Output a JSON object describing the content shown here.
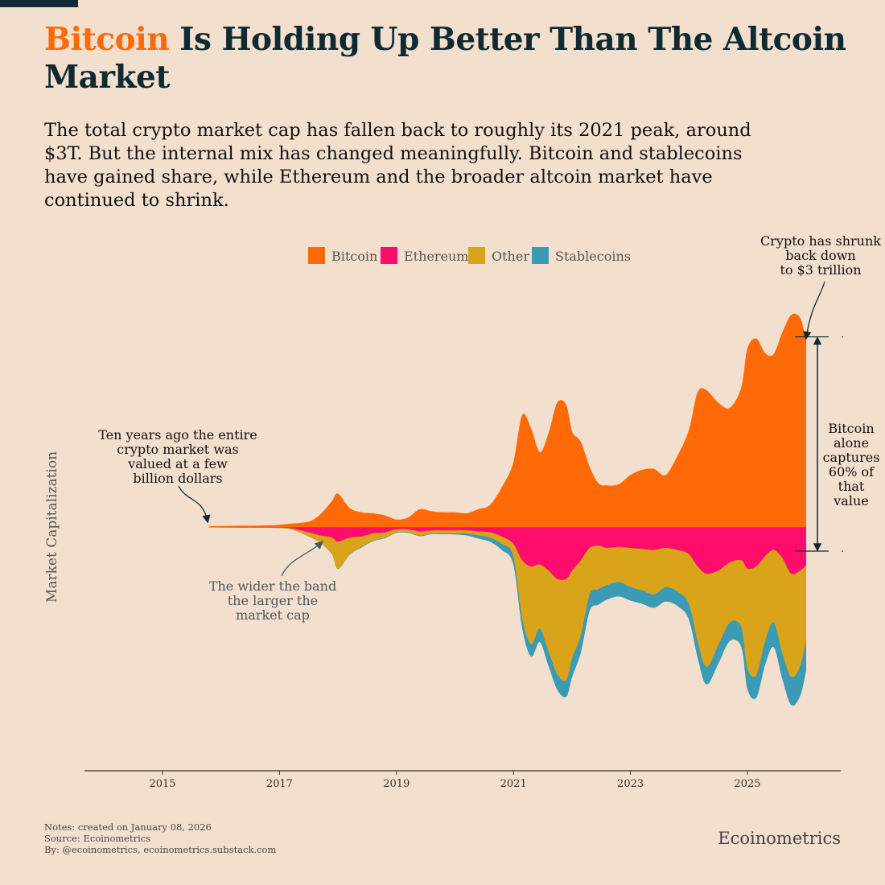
{
  "title": {
    "accent": "Bitcoin",
    "rest": " Is Holding Up Better Than The Altcoin Market"
  },
  "subtitle": "The total crypto market cap has fallen back to roughly its 2021 peak, around $3T. But the internal mix has changed meaningfully. Bitcoin and stablecoins have gained share, while Ethereum and the broader altcoin market have continued to shrink.",
  "notes": {
    "line1": "Notes: created on January 08, 2026",
    "line2": "Source: Ecoinometrics",
    "line3": "By: @ecoinometrics, ecoinometrics.substack.com"
  },
  "brand": "Ecoinometrics",
  "colors": {
    "background": "#f3dfce",
    "bitcoin": "#ff6a08",
    "ethereum": "#fe0d6c",
    "other": "#d9a41a",
    "stablecoins": "#3b9ab4",
    "text": "#0f2a33"
  },
  "chart_data": {
    "type": "area",
    "subtype": "streamgraph",
    "ylabel": "Market Capitalization",
    "xlabel": "",
    "xlim": [
      2013.8,
      2026.7
    ],
    "x_ticks": [
      "2015",
      "2017",
      "2019",
      "2021",
      "2023",
      "2025"
    ],
    "units": "USD trillions (estimated)",
    "legend_position": "top-center",
    "x": [
      2015.8,
      2016.0,
      2016.3,
      2016.6,
      2016.9,
      2017.2,
      2017.5,
      2017.7,
      2017.9,
      2018.0,
      2018.2,
      2018.4,
      2018.6,
      2018.8,
      2019.0,
      2019.2,
      2019.4,
      2019.6,
      2019.8,
      2020.0,
      2020.2,
      2020.4,
      2020.6,
      2020.8,
      2021.0,
      2021.15,
      2021.3,
      2021.45,
      2021.6,
      2021.75,
      2021.9,
      2022.0,
      2022.15,
      2022.3,
      2022.45,
      2022.6,
      2022.8,
      2023.0,
      2023.2,
      2023.4,
      2023.6,
      2023.8,
      2024.0,
      2024.15,
      2024.3,
      2024.5,
      2024.7,
      2024.9,
      2025.0,
      2025.15,
      2025.3,
      2025.45,
      2025.6,
      2025.75,
      2025.9,
      2026.0
    ],
    "series": [
      {
        "name": "Bitcoin",
        "values": [
          0.005,
          0.008,
          0.01,
          0.012,
          0.015,
          0.03,
          0.05,
          0.12,
          0.25,
          0.32,
          0.18,
          0.14,
          0.13,
          0.11,
          0.07,
          0.09,
          0.17,
          0.15,
          0.14,
          0.14,
          0.13,
          0.17,
          0.21,
          0.38,
          0.62,
          1.08,
          0.95,
          0.72,
          0.9,
          1.2,
          1.18,
          0.92,
          0.82,
          0.58,
          0.42,
          0.4,
          0.41,
          0.5,
          0.55,
          0.56,
          0.5,
          0.68,
          0.93,
          1.3,
          1.32,
          1.2,
          1.15,
          1.35,
          1.72,
          1.82,
          1.68,
          1.67,
          1.88,
          2.05,
          2.02,
          1.8
        ]
      },
      {
        "name": "Ethereum",
        "values": [
          0.0005,
          0.001,
          0.002,
          0.002,
          0.003,
          0.01,
          0.05,
          0.08,
          0.1,
          0.14,
          0.1,
          0.09,
          0.06,
          0.05,
          0.02,
          0.02,
          0.04,
          0.03,
          0.03,
          0.03,
          0.03,
          0.04,
          0.05,
          0.09,
          0.16,
          0.32,
          0.38,
          0.36,
          0.42,
          0.5,
          0.5,
          0.42,
          0.32,
          0.2,
          0.18,
          0.2,
          0.19,
          0.2,
          0.21,
          0.22,
          0.2,
          0.22,
          0.26,
          0.38,
          0.45,
          0.42,
          0.34,
          0.32,
          0.4,
          0.38,
          0.28,
          0.22,
          0.3,
          0.45,
          0.42,
          0.37
        ]
      },
      {
        "name": "Other",
        "values": [
          0.0005,
          0.001,
          0.002,
          0.002,
          0.003,
          0.01,
          0.04,
          0.07,
          0.16,
          0.26,
          0.16,
          0.1,
          0.07,
          0.05,
          0.03,
          0.03,
          0.04,
          0.03,
          0.03,
          0.03,
          0.03,
          0.04,
          0.05,
          0.07,
          0.12,
          0.55,
          0.75,
          0.62,
          0.78,
          0.92,
          0.98,
          0.85,
          0.72,
          0.45,
          0.42,
          0.36,
          0.34,
          0.38,
          0.4,
          0.43,
          0.38,
          0.4,
          0.48,
          0.72,
          0.9,
          0.72,
          0.58,
          0.65,
          0.96,
          1.05,
          0.82,
          0.7,
          0.92,
          1.0,
          0.92,
          0.72
        ]
      },
      {
        "name": "Stablecoins",
        "values": [
          5e-05,
          0.0001,
          0.0001,
          0.0002,
          0.0003,
          0.0005,
          0.001,
          0.002,
          0.003,
          0.004,
          0.005,
          0.006,
          0.006,
          0.006,
          0.005,
          0.005,
          0.006,
          0.007,
          0.008,
          0.01,
          0.02,
          0.03,
          0.04,
          0.06,
          0.08,
          0.1,
          0.12,
          0.13,
          0.14,
          0.15,
          0.16,
          0.18,
          0.17,
          0.16,
          0.15,
          0.14,
          0.14,
          0.13,
          0.13,
          0.13,
          0.14,
          0.14,
          0.15,
          0.16,
          0.17,
          0.18,
          0.18,
          0.19,
          0.2,
          0.22,
          0.23,
          0.24,
          0.25,
          0.27,
          0.29,
          0.3
        ]
      }
    ],
    "annotations": [
      {
        "id": "left",
        "text": [
          "Ten years ago the entire",
          "crypto market was",
          "valued at a few",
          "billion dollars"
        ]
      },
      {
        "id": "bottom",
        "text": [
          "The wider the band",
          "the larger the",
          "market cap"
        ]
      },
      {
        "id": "top",
        "text": [
          "Crypto has shrunk",
          "back down",
          "to $3 trillion"
        ]
      },
      {
        "id": "right",
        "text": [
          "Bitcoin",
          "alone",
          "captures",
          "60% of",
          "that",
          "value"
        ]
      }
    ]
  }
}
